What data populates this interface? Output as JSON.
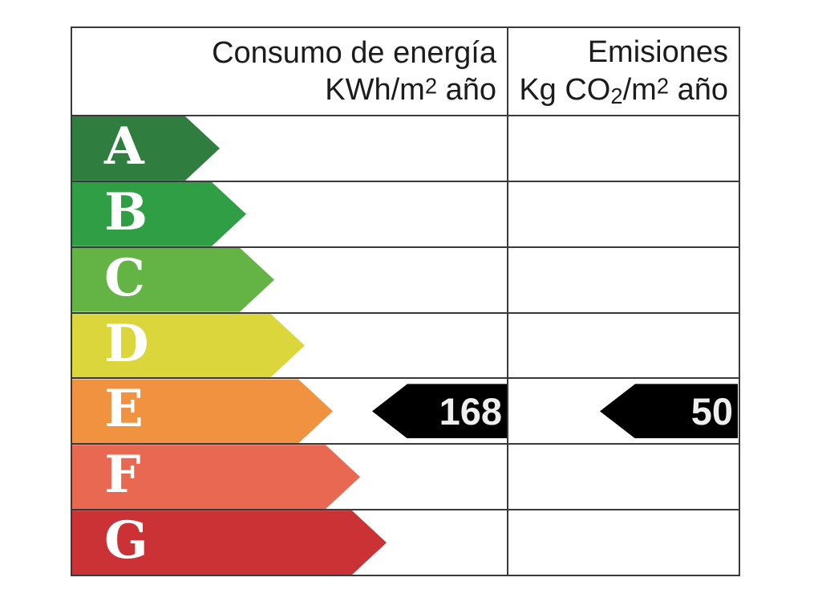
{
  "header": {
    "consumption_title": "Consumo de energía",
    "consumption_unit": {
      "prefix": "KWh/m",
      "sup": "2",
      "suffix": " año"
    },
    "emissions_title": "Emisiones",
    "emissions_unit": {
      "prefix": "Kg CO",
      "sub": "2",
      "mid": "/m",
      "sup": "2",
      "suffix": " año"
    }
  },
  "rows": [
    {
      "letter": "A",
      "color": "#2f7d3f",
      "arrow_width": 184
    },
    {
      "letter": "B",
      "color": "#2f9e44",
      "arrow_width": 217
    },
    {
      "letter": "C",
      "color": "#63b345",
      "arrow_width": 252
    },
    {
      "letter": "D",
      "color": "#dbd63c",
      "arrow_width": 290
    },
    {
      "letter": "E",
      "color": "#f0923f",
      "arrow_width": 325
    },
    {
      "letter": "F",
      "color": "#e96852",
      "arrow_width": 359
    },
    {
      "letter": "G",
      "color": "#ca3236",
      "arrow_width": 392
    }
  ],
  "values": {
    "rated_letter": "E",
    "consumption": "168",
    "emissions": "50"
  },
  "colors": {
    "grid": "#3a3a3a",
    "value_arrow_bg": "#000000",
    "value_text": "#efefef",
    "letter_text": "#ffffff",
    "header_text": "#1c1c1c",
    "background": "#ffffff"
  },
  "chart_data": {
    "type": "bar",
    "title": "",
    "categories": [
      "A",
      "B",
      "C",
      "D",
      "E",
      "F",
      "G"
    ],
    "bar_colors": [
      "#2f7d3f",
      "#2f9e44",
      "#63b345",
      "#dbd63c",
      "#f0923f",
      "#e96852",
      "#ca3236"
    ],
    "bar_relative_lengths": [
      184,
      217,
      252,
      290,
      325,
      359,
      392
    ],
    "series": [
      {
        "name": "Consumo de energía KWh/m2 año",
        "rated_category": "E",
        "value": 168
      },
      {
        "name": "Emisiones Kg CO2/m2 año",
        "rated_category": "E",
        "value": 50
      }
    ],
    "legend_position": "none",
    "grid": true,
    "orientation": "horizontal"
  }
}
